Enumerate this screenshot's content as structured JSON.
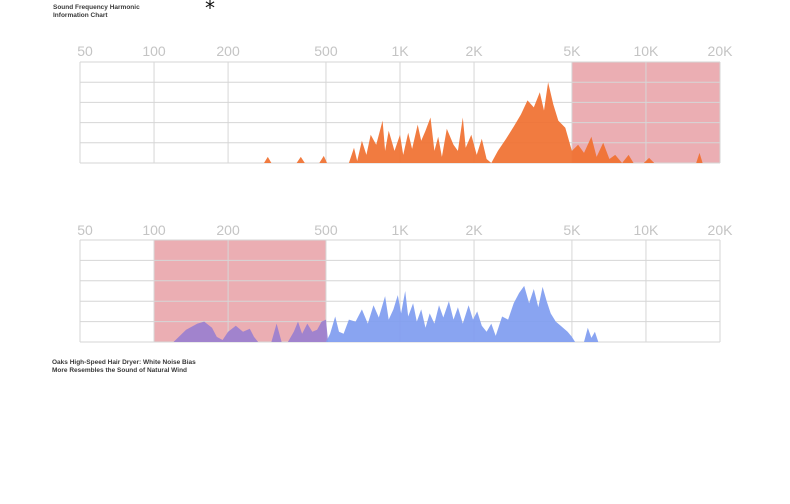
{
  "title": "Sound Frequency Harmonic\n Information Chart",
  "asterisk": "*",
  "caption": "Oaks High-Speed Hair Dryer: White Noise Bias\n More Resembles the Sound of Natural Wind",
  "colors": {
    "highlight": "#e8a0a6",
    "orange": "#f07030",
    "blue": "#7f9cf0",
    "purple": "#9a7fcf",
    "grid": "#d6d6d6"
  },
  "chart_data": [
    {
      "type": "area",
      "x_scale": "log",
      "x_ticks": [
        50,
        100,
        200,
        500,
        1000,
        2000,
        5000,
        10000,
        20000
      ],
      "x_tick_labels": [
        "50",
        "100",
        "200",
        "500",
        "1K",
        "2K",
        "5K",
        "10K",
        "20K"
      ],
      "xlim": [
        50,
        20000
      ],
      "ylim": [
        0,
        1
      ],
      "highlight_range": [
        5000,
        20000
      ],
      "series": [
        {
          "color": "#f07030",
          "points": [
            [
              280,
              0
            ],
            [
              290,
              0.06
            ],
            [
              300,
              0
            ],
            [
              380,
              0
            ],
            [
              395,
              0.06
            ],
            [
              410,
              0
            ],
            [
              470,
              0
            ],
            [
              490,
              0.07
            ],
            [
              505,
              0
            ],
            [
              620,
              0
            ],
            [
              650,
              0.15
            ],
            [
              670,
              0.02
            ],
            [
              700,
              0.22
            ],
            [
              730,
              0.08
            ],
            [
              760,
              0.28
            ],
            [
              800,
              0.18
            ],
            [
              850,
              0.42
            ],
            [
              870,
              0.12
            ],
            [
              900,
              0.32
            ],
            [
              950,
              0.12
            ],
            [
              1000,
              0.28
            ],
            [
              1030,
              0.08
            ],
            [
              1080,
              0.3
            ],
            [
              1120,
              0.14
            ],
            [
              1180,
              0.38
            ],
            [
              1220,
              0.22
            ],
            [
              1270,
              0.32
            ],
            [
              1330,
              0.45
            ],
            [
              1380,
              0.12
            ],
            [
              1430,
              0.26
            ],
            [
              1480,
              0.06
            ],
            [
              1550,
              0.34
            ],
            [
              1650,
              0.18
            ],
            [
              1720,
              0.12
            ],
            [
              1800,
              0.45
            ],
            [
              1850,
              0.15
            ],
            [
              1950,
              0.28
            ],
            [
              2050,
              0.08
            ],
            [
              2150,
              0.24
            ],
            [
              2250,
              0.04
            ],
            [
              2350,
              0
            ],
            [
              2500,
              0.12
            ],
            [
              2700,
              0.24
            ],
            [
              2900,
              0.36
            ],
            [
              3100,
              0.48
            ],
            [
              3300,
              0.62
            ],
            [
              3500,
              0.55
            ],
            [
              3700,
              0.7
            ],
            [
              3850,
              0.52
            ],
            [
              4000,
              0.8
            ],
            [
              4200,
              0.58
            ],
            [
              4400,
              0.42
            ],
            [
              4700,
              0.35
            ],
            [
              5000,
              0.12
            ],
            [
              5300,
              0.18
            ],
            [
              5600,
              0.1
            ],
            [
              6000,
              0.26
            ],
            [
              6300,
              0.06
            ],
            [
              6700,
              0.2
            ],
            [
              7100,
              0.04
            ],
            [
              7500,
              0.08
            ],
            [
              8000,
              0
            ],
            [
              8500,
              0.08
            ],
            [
              8900,
              0
            ],
            [
              9800,
              0
            ],
            [
              10300,
              0.05
            ],
            [
              10800,
              0
            ],
            [
              16000,
              0
            ],
            [
              16500,
              0.1
            ],
            [
              17000,
              0
            ]
          ]
        }
      ]
    },
    {
      "type": "area",
      "x_scale": "log",
      "x_ticks": [
        50,
        100,
        200,
        500,
        1000,
        2000,
        5000,
        10000,
        20000
      ],
      "x_tick_labels": [
        "50",
        "100",
        "200",
        "500",
        "1K",
        "2K",
        "5K",
        "10K",
        "20K"
      ],
      "xlim": [
        50,
        20000
      ],
      "ylim": [
        0,
        1
      ],
      "highlight_range": [
        100,
        500
      ],
      "series": [
        {
          "color": "#9a7fcf",
          "points": [
            [
              120,
              0
            ],
            [
              135,
              0.12
            ],
            [
              150,
              0.18
            ],
            [
              160,
              0.2
            ],
            [
              172,
              0.14
            ],
            [
              180,
              0.05
            ],
            [
              190,
              0.02
            ],
            [
              200,
              0.1
            ],
            [
              215,
              0.16
            ],
            [
              230,
              0.1
            ],
            [
              245,
              0.13
            ],
            [
              255,
              0.05
            ],
            [
              265,
              0
            ],
            [
              300,
              0
            ],
            [
              315,
              0.18
            ],
            [
              330,
              0
            ],
            [
              350,
              0
            ],
            [
              370,
              0.1
            ],
            [
              385,
              0.2
            ],
            [
              400,
              0.08
            ],
            [
              420,
              0.18
            ],
            [
              440,
              0.1
            ],
            [
              460,
              0.12
            ],
            [
              480,
              0.2
            ],
            [
              500,
              0.22
            ],
            [
              510,
              0
            ]
          ]
        },
        {
          "color": "#7f9cf0",
          "points": [
            [
              500,
              0
            ],
            [
              520,
              0.08
            ],
            [
              545,
              0.25
            ],
            [
              565,
              0.1
            ],
            [
              590,
              0.08
            ],
            [
              620,
              0.22
            ],
            [
              660,
              0.2
            ],
            [
              700,
              0.32
            ],
            [
              740,
              0.18
            ],
            [
              780,
              0.36
            ],
            [
              820,
              0.24
            ],
            [
              870,
              0.45
            ],
            [
              900,
              0.22
            ],
            [
              940,
              0.32
            ],
            [
              980,
              0.46
            ],
            [
              1010,
              0.28
            ],
            [
              1050,
              0.5
            ],
            [
              1080,
              0.25
            ],
            [
              1130,
              0.38
            ],
            [
              1170,
              0.2
            ],
            [
              1220,
              0.32
            ],
            [
              1270,
              0.14
            ],
            [
              1320,
              0.28
            ],
            [
              1380,
              0.18
            ],
            [
              1440,
              0.36
            ],
            [
              1500,
              0.24
            ],
            [
              1580,
              0.4
            ],
            [
              1650,
              0.22
            ],
            [
              1720,
              0.34
            ],
            [
              1800,
              0.18
            ],
            [
              1900,
              0.36
            ],
            [
              1980,
              0.22
            ],
            [
              2060,
              0.3
            ],
            [
              2150,
              0.16
            ],
            [
              2250,
              0.1
            ],
            [
              2350,
              0.18
            ],
            [
              2450,
              0.06
            ],
            [
              2600,
              0.25
            ],
            [
              2750,
              0.22
            ],
            [
              2900,
              0.38
            ],
            [
              3050,
              0.48
            ],
            [
              3200,
              0.55
            ],
            [
              3350,
              0.38
            ],
            [
              3500,
              0.52
            ],
            [
              3650,
              0.34
            ],
            [
              3800,
              0.54
            ],
            [
              3950,
              0.4
            ],
            [
              4100,
              0.28
            ],
            [
              4300,
              0.2
            ],
            [
              4500,
              0.16
            ],
            [
              4800,
              0.1
            ],
            [
              5000,
              0.05
            ],
            [
              5150,
              0
            ],
            [
              5600,
              0
            ],
            [
              5800,
              0.14
            ],
            [
              6000,
              0.04
            ],
            [
              6200,
              0.1
            ],
            [
              6400,
              0
            ]
          ]
        }
      ]
    }
  ]
}
